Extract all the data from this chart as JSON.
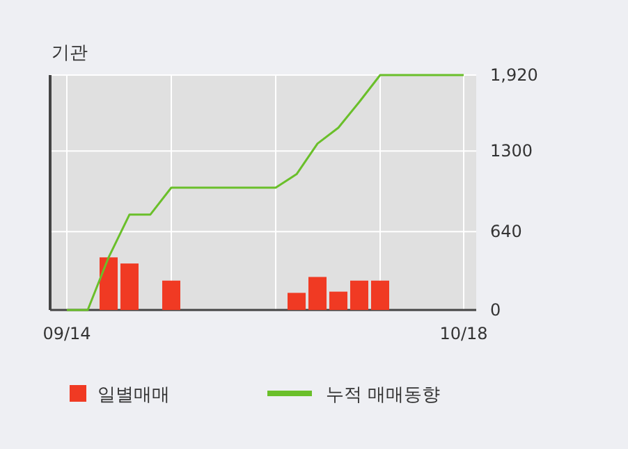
{
  "chart_data": {
    "type": "bar",
    "title": "기관",
    "categories": [
      "09/14",
      null,
      null,
      null,
      null,
      null,
      null,
      null,
      null,
      null,
      null,
      null,
      null,
      null,
      null,
      null,
      null,
      null,
      null,
      "10/18"
    ],
    "series": [
      {
        "name": "일별매매",
        "color": "#f03a23",
        "values": [
          0,
          0,
          430,
          380,
          0,
          240,
          0,
          0,
          0,
          0,
          0,
          140,
          270,
          150,
          240,
          240,
          0,
          0,
          0,
          0
        ]
      },
      {
        "name": "누적 매매동향",
        "type": "line",
        "color": "#6abf2a",
        "values": [
          0,
          0,
          430,
          780,
          780,
          1000,
          1000,
          1000,
          1000,
          1000,
          1000,
          1110,
          1360,
          1490,
          1700,
          1920,
          1920,
          1920,
          1920,
          1920
        ]
      }
    ],
    "ylim": [
      0,
      1920
    ],
    "yticks": [
      0,
      640,
      1300,
      {
        "value": 1920,
        "label": "1,920"
      }
    ],
    "grid": true,
    "legend": "bottom"
  }
}
